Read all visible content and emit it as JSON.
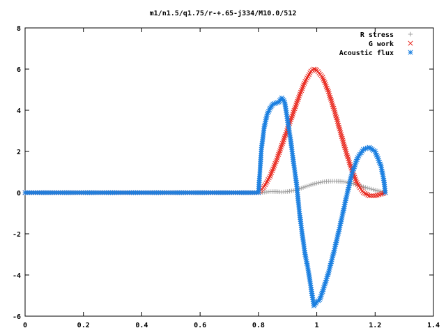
{
  "chart_data": {
    "type": "scatter",
    "title": "m1/n1.5/q1.75/r-+.65-j334/M10.0/512",
    "xlabel": "",
    "ylabel": "",
    "xlim": [
      0,
      1.4
    ],
    "ylim": [
      -6,
      8
    ],
    "xticks": [
      0,
      0.2,
      0.4,
      0.6,
      0.8,
      1,
      1.2,
      1.4
    ],
    "xtick_labels": [
      "0",
      "0.2",
      "0.4",
      "0.6",
      "0.8",
      "1",
      "1.2",
      "1.4"
    ],
    "yticks": [
      -6,
      -4,
      -2,
      0,
      2,
      4,
      6,
      8
    ],
    "ytick_labels": [
      "-6",
      "-4",
      "-2",
      "0",
      "2",
      "4",
      "6",
      "8"
    ],
    "grid": false,
    "legend_position": "top-right",
    "series": [
      {
        "name": "R stress",
        "color": "#a0a0a0",
        "marker": "plus",
        "points": [
          [
            0.0,
            0.0
          ],
          [
            0.2,
            0.0
          ],
          [
            0.4,
            0.0
          ],
          [
            0.6,
            0.0
          ],
          [
            0.8,
            0.0
          ],
          [
            0.82,
            0.02
          ],
          [
            0.84,
            0.05
          ],
          [
            0.86,
            0.05
          ],
          [
            0.88,
            0.03
          ],
          [
            0.9,
            0.05
          ],
          [
            0.92,
            0.1
          ],
          [
            0.94,
            0.18
          ],
          [
            0.96,
            0.28
          ],
          [
            0.98,
            0.38
          ],
          [
            1.0,
            0.46
          ],
          [
            1.02,
            0.52
          ],
          [
            1.04,
            0.55
          ],
          [
            1.06,
            0.56
          ],
          [
            1.08,
            0.55
          ],
          [
            1.1,
            0.51
          ],
          [
            1.12,
            0.45
          ],
          [
            1.14,
            0.37
          ],
          [
            1.16,
            0.28
          ],
          [
            1.18,
            0.2
          ],
          [
            1.2,
            0.12
          ],
          [
            1.22,
            0.05
          ],
          [
            1.235,
            0.02
          ]
        ]
      },
      {
        "name": "G work",
        "color": "#e8241a",
        "marker": "cross",
        "points": [
          [
            0.0,
            0.0
          ],
          [
            0.2,
            0.0
          ],
          [
            0.4,
            0.0
          ],
          [
            0.6,
            0.0
          ],
          [
            0.8,
            0.0
          ],
          [
            0.82,
            0.3
          ],
          [
            0.84,
            0.8
          ],
          [
            0.86,
            1.5
          ],
          [
            0.88,
            2.3
          ],
          [
            0.9,
            3.1
          ],
          [
            0.92,
            3.9
          ],
          [
            0.94,
            4.7
          ],
          [
            0.96,
            5.4
          ],
          [
            0.98,
            5.9
          ],
          [
            0.99,
            6.0
          ],
          [
            1.0,
            5.95
          ],
          [
            1.02,
            5.6
          ],
          [
            1.04,
            4.9
          ],
          [
            1.06,
            4.0
          ],
          [
            1.08,
            3.0
          ],
          [
            1.1,
            2.0
          ],
          [
            1.12,
            1.1
          ],
          [
            1.14,
            0.4
          ],
          [
            1.16,
            0.0
          ],
          [
            1.18,
            -0.15
          ],
          [
            1.2,
            -0.15
          ],
          [
            1.22,
            -0.08
          ],
          [
            1.235,
            0.0
          ]
        ]
      },
      {
        "name": "Acoustic flux",
        "color": "#1a7fe0",
        "marker": "star",
        "points": [
          [
            0.0,
            0.0
          ],
          [
            0.2,
            0.0
          ],
          [
            0.4,
            0.0
          ],
          [
            0.6,
            0.0
          ],
          [
            0.8,
            0.0
          ],
          [
            0.805,
            1.0
          ],
          [
            0.81,
            2.1
          ],
          [
            0.82,
            3.2
          ],
          [
            0.83,
            3.8
          ],
          [
            0.84,
            4.1
          ],
          [
            0.85,
            4.3
          ],
          [
            0.86,
            4.35
          ],
          [
            0.87,
            4.4
          ],
          [
            0.88,
            4.6
          ],
          [
            0.89,
            4.4
          ],
          [
            0.9,
            3.5
          ],
          [
            0.91,
            2.6
          ],
          [
            0.92,
            1.5
          ],
          [
            0.93,
            0.5
          ],
          [
            0.94,
            -0.9
          ],
          [
            0.95,
            -2.0
          ],
          [
            0.96,
            -3.0
          ],
          [
            0.97,
            -3.7
          ],
          [
            0.98,
            -4.6
          ],
          [
            0.99,
            -5.5
          ],
          [
            1.0,
            -5.3
          ],
          [
            1.01,
            -5.2
          ],
          [
            1.02,
            -4.8
          ],
          [
            1.04,
            -3.9
          ],
          [
            1.06,
            -2.8
          ],
          [
            1.08,
            -1.6
          ],
          [
            1.1,
            -0.3
          ],
          [
            1.12,
            0.9
          ],
          [
            1.14,
            1.7
          ],
          [
            1.16,
            2.1
          ],
          [
            1.18,
            2.2
          ],
          [
            1.2,
            2.0
          ],
          [
            1.22,
            1.3
          ],
          [
            1.23,
            0.6
          ],
          [
            1.235,
            0.0
          ]
        ]
      }
    ]
  }
}
